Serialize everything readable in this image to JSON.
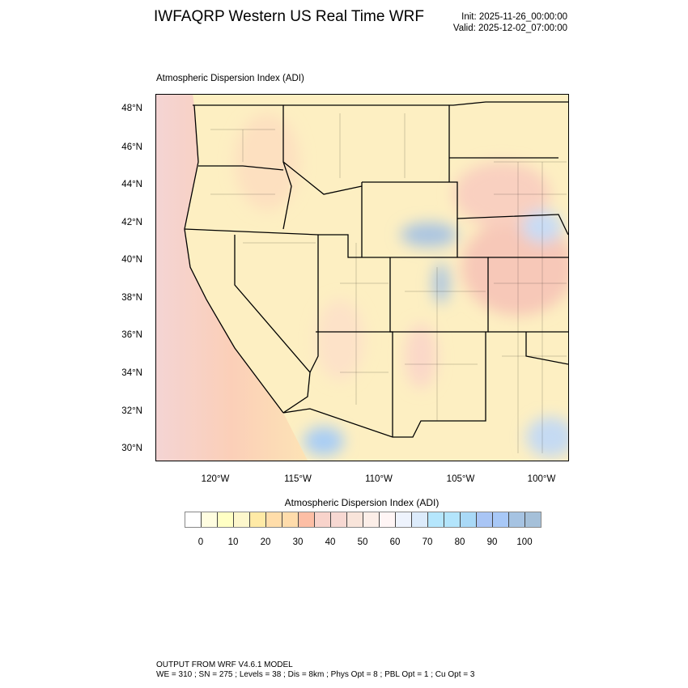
{
  "header": {
    "title": "IWFAQRP Western US Real Time WRF",
    "init": "Init: 2025-11-26_00:00:00",
    "valid": "Valid: 2025-12-02_07:00:00"
  },
  "map": {
    "subtitle": "Atmospheric Dispersion Index   (ADI)",
    "lat_labels": [
      "48°N",
      "46°N",
      "44°N",
      "42°N",
      "40°N",
      "38°N",
      "36°N",
      "34°N",
      "32°N",
      "30°N"
    ],
    "lon_labels": [
      "120°W",
      "115°W",
      "110°W",
      "105°W",
      "100°W"
    ]
  },
  "legend": {
    "title": "Atmospheric Dispersion Index  (ADI)",
    "tick_labels": [
      "0",
      "10",
      "20",
      "30",
      "40",
      "50",
      "60",
      "70",
      "80",
      "90",
      "100"
    ],
    "colors": [
      "#ffffff",
      "#fffde0",
      "#ffffc4",
      "#fdf7cc",
      "#ffeaa6",
      "#ffddaa",
      "#ffdcab",
      "#fdbea5",
      "#f8d3cb",
      "#f7d8d2",
      "#f8e4da",
      "#fceee8",
      "#fff5f5",
      "#eef3fd",
      "#dcebfb",
      "#b5e6fc",
      "#b3e5fc",
      "#a9d9f7",
      "#a9c5f5",
      "#a8c8f7",
      "#a6c3e2",
      "#a5c0d9"
    ]
  },
  "footer": {
    "line1": "OUTPUT FROM WRF V4.6.1 MODEL",
    "line2": "WE = 310 ; SN = 275 ; Levels = 38 ; Dis = 8km ; Phys Opt = 8 ; PBL Opt = 1 ; Cu Opt = 3"
  }
}
